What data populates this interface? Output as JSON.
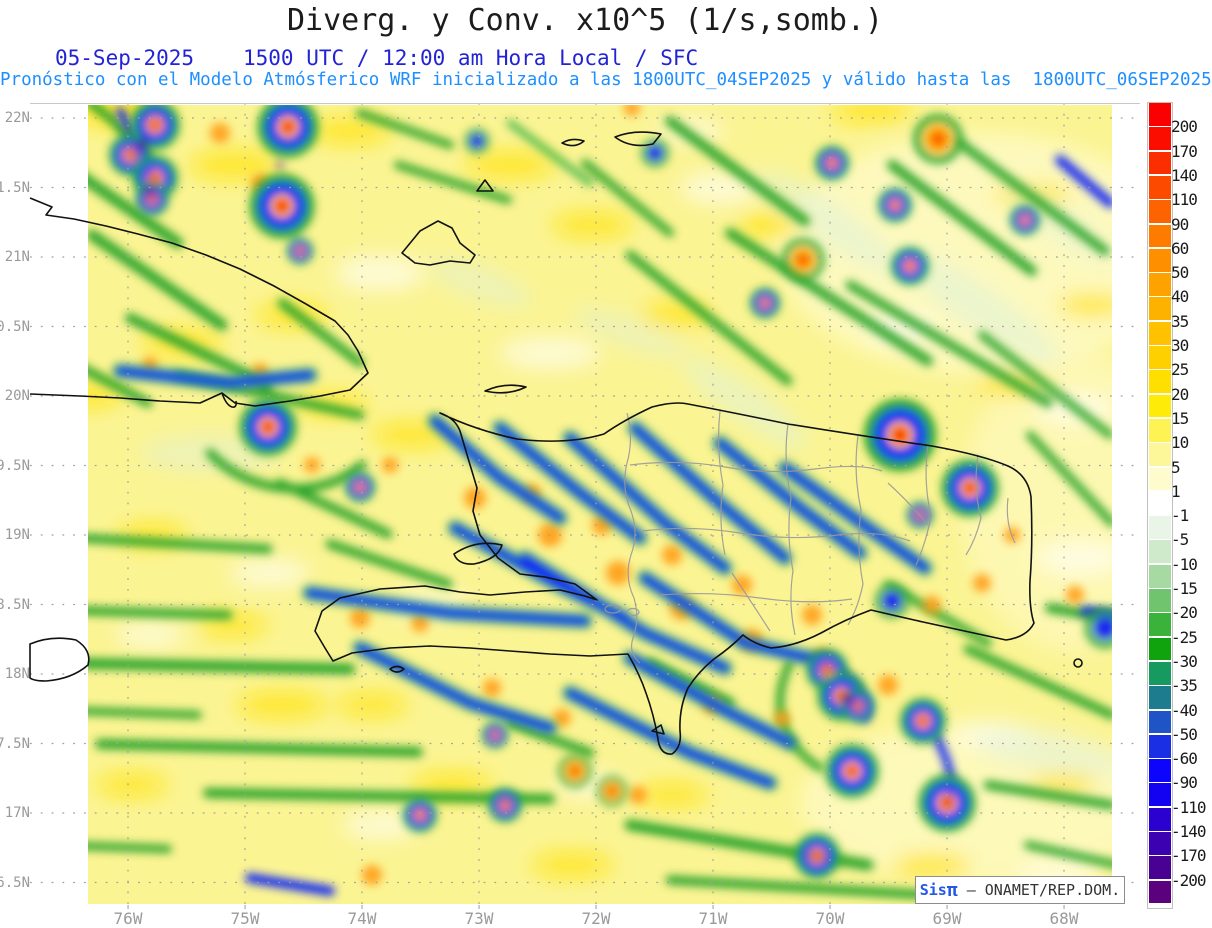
{
  "header": {
    "title": "Diverg. y Conv. x10^5 (1/s,somb.)",
    "date": "05-Sep-2025",
    "time": "1500 UTC / 12:00 am Hora Local / SFC",
    "forecast": "Pronóstico con el Modelo Atmósferico WRF inicializado a las 1800UTC_04SEP2025 y válido hasta las  1800UTC_06SEP2025"
  },
  "axes": {
    "y_labels": [
      "22N",
      "1.5N",
      "21N",
      "0.5N",
      "20N",
      "9.5N",
      "19N",
      "8.5N",
      "18N",
      "7.5N",
      "17N",
      "6.5N"
    ],
    "x_labels": [
      "76W",
      "75W",
      "74W",
      "73W",
      "72W",
      "71W",
      "70W",
      "69W",
      "68W"
    ]
  },
  "colorbar": {
    "labels": [
      200,
      170,
      140,
      110,
      90,
      60,
      50,
      40,
      35,
      30,
      25,
      20,
      15,
      10,
      5,
      1,
      -1,
      -5,
      -10,
      -15,
      -20,
      -25,
      -30,
      -35,
      -40,
      -50,
      -60,
      -90,
      -110,
      -140,
      -170,
      -200
    ],
    "segment_colors": [
      "#FB0000",
      "#FB0E00",
      "#FB2E00",
      "#FC4A00",
      "#FD6300",
      "#FD7C00",
      "#FE9000",
      "#FEA200",
      "#FEB200",
      "#FFC100",
      "#FFD000",
      "#FFDF00",
      "#FEEC08",
      "#FDF355",
      "#FEF799",
      "#FEFBCD",
      "#FFFFFF",
      "#E9F5E6",
      "#CEEACA",
      "#A6DAA2",
      "#70C46D",
      "#3BB33A",
      "#10A30E",
      "#169A5F",
      "#1D7D8F",
      "#1E54C5",
      "#1A2EE4",
      "#0D04FE",
      "#1301F1",
      "#2B01CF",
      "#3C01B1",
      "#490194",
      "#5B017D"
    ]
  },
  "watermark": {
    "brand": "Sis",
    "pi": "π",
    "org": " – ONAMET/REP.DOM."
  },
  "chart_data": {
    "type": "heatmap",
    "title": "Diverg. y Conv. x10^5 (1/s,somb.)",
    "units": "1/s,somb.",
    "valid_datetime": "05-Sep-2025 1500 UTC / 12:00 am Hora Local / SFC",
    "model": "WRF",
    "initialized": "1800UTC_04SEP2025",
    "valid_until": "1800UTC_06SEP2025",
    "x_tick_labels": [
      "76W",
      "75W",
      "74W",
      "73W",
      "72W",
      "71W",
      "70W",
      "69W",
      "68W"
    ],
    "y_tick_labels": [
      "22N",
      "1.5N",
      "21N",
      "0.5N",
      "20N",
      "9.5N",
      "19N",
      "8.5N",
      "18N",
      "7.5N",
      "17N",
      "6.5N"
    ],
    "colorbar_levels": [
      200,
      170,
      140,
      110,
      90,
      60,
      50,
      40,
      35,
      30,
      25,
      20,
      15,
      10,
      5,
      1,
      -1,
      -5,
      -10,
      -15,
      -20,
      -25,
      -30,
      -35,
      -40,
      -50,
      -60,
      -90,
      -110,
      -140,
      -170,
      -200
    ],
    "legend_position": "right",
    "grid": "dotted"
  }
}
